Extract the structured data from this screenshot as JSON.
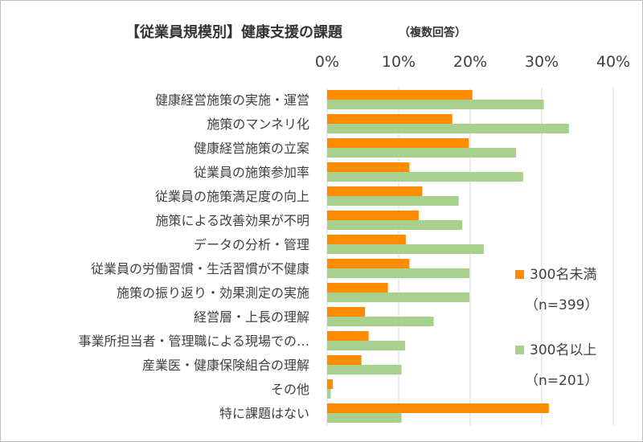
{
  "chart_data": {
    "type": "bar",
    "orientation": "horizontal",
    "title": "【従業員規模別】健康支援の課題",
    "subtitle": "（複数回答）",
    "xlim": [
      0,
      40
    ],
    "xticks": [
      "0%",
      "10%",
      "20%",
      "30%",
      "40%"
    ],
    "grid": true,
    "legend_position": "right",
    "categories": [
      "健康経営施策の実施・運営",
      "施策のマンネリ化",
      "健康経営施策の立案",
      "従業員の施策参加率",
      "従業員の施策満足度の向上",
      "施策による改善効果が不明",
      "データの分析・管理",
      "従業員の労働習慣・生活習慣が不健康",
      "施策の振り返り・効果測定の実施",
      "経営層・上長の理解",
      "事業所担当者・管理職による現場での…",
      "産業医・健康保険組合の理解",
      "その他",
      "特に課題はない"
    ],
    "series": [
      {
        "name": "300名未満",
        "n_label": "（n=399）",
        "color": "#ff8c00",
        "values": [
          20.3,
          17.5,
          19.8,
          11.5,
          13.3,
          12.8,
          11.0,
          11.5,
          8.5,
          5.3,
          5.8,
          4.8,
          0.8,
          31.0
        ]
      },
      {
        "name": "300名以上",
        "n_label": "（n=201）",
        "color": "#a9d18e",
        "values": [
          30.3,
          33.8,
          26.4,
          27.4,
          18.4,
          18.9,
          21.9,
          19.9,
          19.9,
          14.9,
          10.9,
          10.4,
          0.5,
          10.4
        ]
      }
    ]
  }
}
